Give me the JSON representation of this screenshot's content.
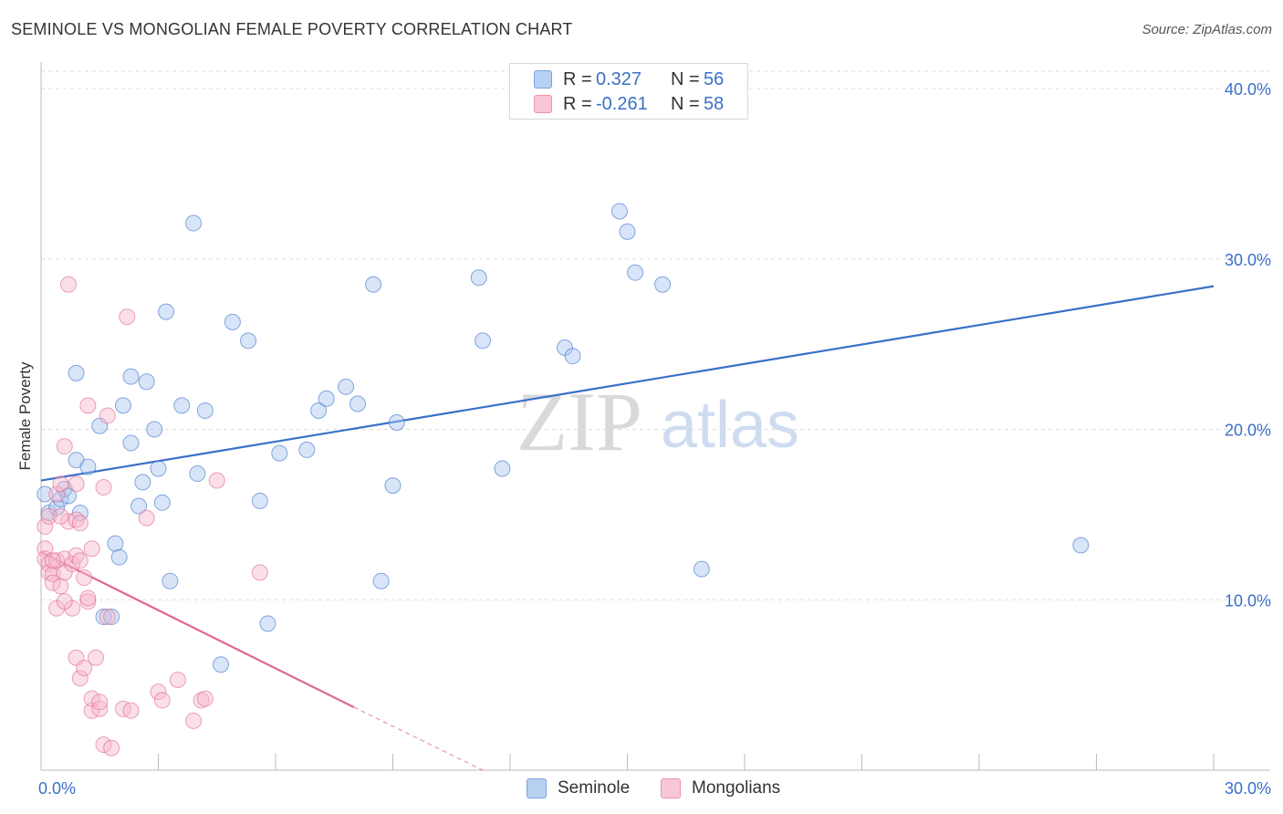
{
  "chart_data": {
    "type": "scatter",
    "title": "SEMINOLE VS MONGOLIAN FEMALE POVERTY CORRELATION CHART",
    "source": "Source: ZipAtlas.com",
    "xlabel": "",
    "ylabel": "Female Poverty",
    "xlim": [
      0,
      30
    ],
    "ylim": [
      0,
      40
    ],
    "x_tick_labels": [
      {
        "value": 0,
        "label": "0.0%"
      },
      {
        "value": 30,
        "label": "30.0%"
      }
    ],
    "y_tick_labels": [
      {
        "value": 10,
        "label": "10.0%"
      },
      {
        "value": 20,
        "label": "20.0%"
      },
      {
        "value": 30,
        "label": "30.0%"
      },
      {
        "value": 40,
        "label": "40.0%"
      }
    ],
    "watermark": {
      "part1": "ZIP",
      "part2": "atlas"
    },
    "legend": {
      "rows": [
        {
          "r_label": "R =",
          "r_value": "0.327",
          "n_label": "N =",
          "n_value": "56"
        },
        {
          "r_label": "R =",
          "r_value": "-0.261",
          "n_label": "N =",
          "n_value": "58"
        }
      ]
    },
    "series": [
      {
        "name": "Seminole",
        "color": "#3a70c8",
        "fill": "#a9c6f0",
        "trend": {
          "x1": 0,
          "y1": 17.0,
          "x2": 30,
          "y2": 28.4
        },
        "points": [
          [
            0.1,
            16.2
          ],
          [
            0.2,
            15.1
          ],
          [
            0.4,
            15.4
          ],
          [
            0.5,
            15.9
          ],
          [
            0.6,
            16.5
          ],
          [
            0.7,
            16.1
          ],
          [
            0.9,
            18.2
          ],
          [
            1.0,
            15.1
          ],
          [
            1.2,
            17.8
          ],
          [
            0.9,
            23.3
          ],
          [
            1.5,
            20.2
          ],
          [
            1.6,
            9.0
          ],
          [
            1.8,
            9.0
          ],
          [
            1.9,
            13.3
          ],
          [
            2.0,
            12.5
          ],
          [
            2.1,
            21.4
          ],
          [
            2.3,
            19.2
          ],
          [
            2.3,
            23.1
          ],
          [
            2.5,
            15.5
          ],
          [
            2.6,
            16.9
          ],
          [
            2.7,
            22.8
          ],
          [
            2.9,
            20.0
          ],
          [
            3.0,
            17.7
          ],
          [
            3.1,
            15.7
          ],
          [
            3.2,
            26.9
          ],
          [
            3.3,
            11.1
          ],
          [
            3.6,
            21.4
          ],
          [
            3.9,
            32.1
          ],
          [
            4.0,
            17.4
          ],
          [
            4.2,
            21.1
          ],
          [
            4.6,
            6.2
          ],
          [
            4.9,
            26.3
          ],
          [
            5.3,
            25.2
          ],
          [
            5.6,
            15.8
          ],
          [
            5.8,
            8.6
          ],
          [
            6.1,
            18.6
          ],
          [
            6.8,
            18.8
          ],
          [
            7.1,
            21.1
          ],
          [
            7.3,
            21.8
          ],
          [
            7.8,
            22.5
          ],
          [
            8.1,
            21.5
          ],
          [
            8.5,
            28.5
          ],
          [
            8.7,
            11.1
          ],
          [
            9.0,
            16.7
          ],
          [
            9.1,
            20.4
          ],
          [
            11.2,
            28.9
          ],
          [
            11.3,
            25.2
          ],
          [
            11.8,
            17.7
          ],
          [
            13.4,
            24.8
          ],
          [
            13.6,
            24.3
          ],
          [
            14.8,
            32.8
          ],
          [
            15.0,
            31.6
          ],
          [
            15.2,
            29.2
          ],
          [
            15.9,
            28.5
          ],
          [
            16.9,
            11.8
          ],
          [
            26.6,
            13.2
          ]
        ]
      },
      {
        "name": "Mongolians",
        "color": "#e06890",
        "fill": "#f7b8cc",
        "trend": {
          "x1": 0,
          "y1": 12.8,
          "x2": 8.0,
          "y2": 3.7
        },
        "trend_dashed": {
          "x1": 8.0,
          "y1": 3.7,
          "x2": 11.3,
          "y2": 0.0
        },
        "points": [
          [
            0.1,
            14.3
          ],
          [
            0.1,
            13.0
          ],
          [
            0.1,
            12.4
          ],
          [
            0.2,
            14.9
          ],
          [
            0.2,
            12.1
          ],
          [
            0.2,
            11.6
          ],
          [
            0.3,
            11.5
          ],
          [
            0.3,
            11.0
          ],
          [
            0.4,
            16.2
          ],
          [
            0.4,
            12.3
          ],
          [
            0.4,
            9.5
          ],
          [
            0.5,
            16.8
          ],
          [
            0.5,
            10.8
          ],
          [
            0.6,
            12.4
          ],
          [
            0.6,
            11.6
          ],
          [
            0.6,
            19.0
          ],
          [
            0.7,
            14.6
          ],
          [
            0.7,
            28.5
          ],
          [
            0.8,
            12.1
          ],
          [
            0.8,
            9.5
          ],
          [
            0.9,
            12.6
          ],
          [
            0.9,
            14.7
          ],
          [
            1.0,
            14.5
          ],
          [
            0.9,
            6.6
          ],
          [
            1.0,
            5.4
          ],
          [
            1.1,
            6.0
          ],
          [
            1.1,
            11.3
          ],
          [
            1.2,
            9.9
          ],
          [
            1.2,
            10.1
          ],
          [
            1.2,
            21.4
          ],
          [
            1.3,
            13.0
          ],
          [
            1.3,
            3.5
          ],
          [
            1.3,
            4.2
          ],
          [
            1.4,
            6.6
          ],
          [
            1.5,
            3.6
          ],
          [
            1.5,
            4.0
          ],
          [
            1.6,
            1.5
          ],
          [
            1.6,
            16.6
          ],
          [
            1.7,
            20.8
          ],
          [
            1.7,
            9.0
          ],
          [
            1.8,
            1.3
          ],
          [
            2.1,
            3.6
          ],
          [
            2.2,
            26.6
          ],
          [
            2.3,
            3.5
          ],
          [
            2.7,
            14.8
          ],
          [
            3.0,
            4.6
          ],
          [
            3.1,
            4.1
          ],
          [
            3.5,
            5.3
          ],
          [
            3.9,
            2.9
          ],
          [
            4.1,
            4.1
          ],
          [
            4.2,
            4.2
          ],
          [
            4.5,
            17.0
          ],
          [
            5.6,
            11.6
          ],
          [
            0.9,
            16.8
          ],
          [
            0.5,
            14.9
          ],
          [
            0.3,
            12.3
          ],
          [
            1.0,
            12.3
          ],
          [
            0.6,
            9.9
          ]
        ]
      }
    ]
  }
}
